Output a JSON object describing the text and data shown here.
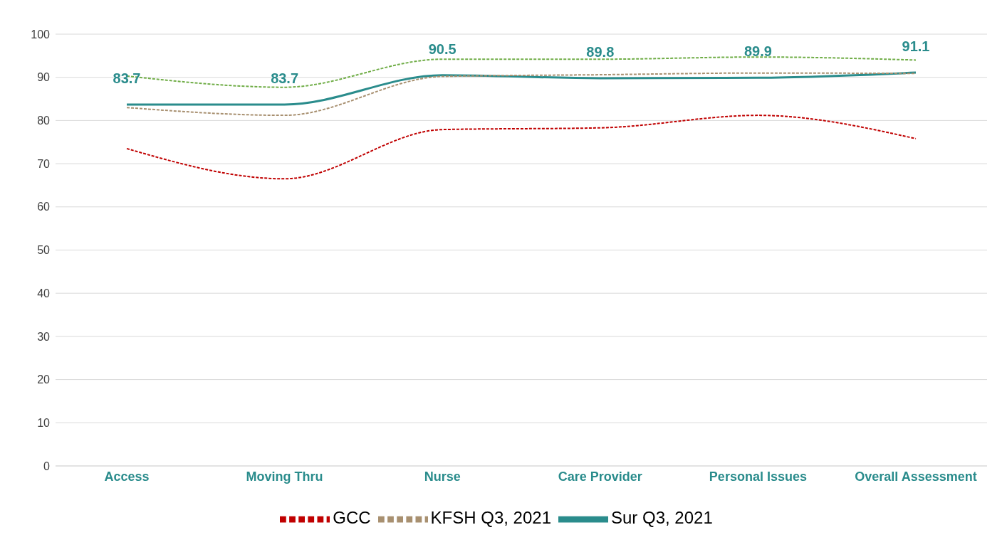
{
  "chart_data": {
    "type": "line",
    "categories": [
      "Access",
      "Moving Thru",
      "Nurse",
      "Care Provider",
      "Personal Issues",
      "Overall Assessment"
    ],
    "ylim": [
      0,
      100
    ],
    "yticks": [
      0,
      10,
      20,
      30,
      40,
      50,
      60,
      70,
      80,
      90,
      100
    ],
    "grid": "y",
    "legend": "bottom",
    "marker": "none",
    "series": [
      {
        "name": "GCC",
        "color": "#c00000",
        "line_style": "dashed",
        "values": [
          73.5,
          66.5,
          77.9,
          78.3,
          81.2,
          75.8
        ]
      },
      {
        "color": "#70ad47",
        "line_style": "dashed",
        "values": [
          90.3,
          87.7,
          94.2,
          94.2,
          94.7,
          94.0
        ]
      },
      {
        "name": "KFSH Q3, 2021",
        "color": "#a89070",
        "line_style": "dashed",
        "values": [
          83.0,
          81.2,
          90.2,
          90.6,
          91.0,
          90.9
        ]
      },
      {
        "name": "Sur Q3, 2021",
        "color": "#2a8c8c",
        "line_style": "solid",
        "values": [
          83.7,
          83.7,
          90.5,
          89.8,
          89.9,
          91.1
        ],
        "value_labels": [
          "83.7",
          "83.7",
          "90.5",
          "89.8",
          "89.9",
          "91.1"
        ]
      }
    ]
  }
}
